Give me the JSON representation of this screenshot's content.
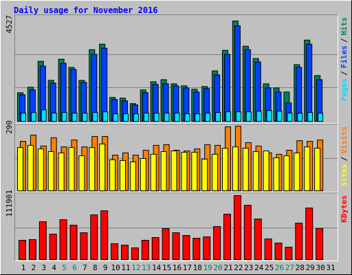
{
  "title": "Daily usage for November 2016",
  "legend_separator": "/",
  "chart_data": [
    {
      "type": "bar",
      "ylim": [
        0,
        4527
      ],
      "yticks": [
        4527
      ],
      "series": [
        {
          "name": "Hits",
          "color": "#00805c",
          "values": [
            1293,
            1540,
            2710,
            1848,
            2803,
            2433,
            1848,
            3234,
            3480,
            1078,
            1047,
            801,
            1417,
            1786,
            1879,
            1694,
            1602,
            1448,
            1571,
            2279,
            3203,
            4527,
            3388,
            2834,
            1694,
            1509,
            1324,
            2556,
            3665,
            2064,
            null
          ]
        },
        {
          "name": "Files",
          "color": "#0040ff",
          "values": [
            1200,
            1420,
            2495,
            1725,
            2620,
            2340,
            1755,
            3020,
            3295,
            985,
            925,
            740,
            1295,
            1665,
            1695,
            1600,
            1510,
            1325,
            1480,
            2095,
            3020,
            4310,
            3235,
            2680,
            1510,
            1325,
            832,
            2435,
            3480,
            1880,
            null
          ]
        },
        {
          "name": "Pages",
          "color": "#00e0ff",
          "values": [
            370,
            400,
            520,
            370,
            400,
            370,
            370,
            400,
            430,
            340,
            340,
            340,
            370,
            370,
            370,
            370,
            340,
            340,
            370,
            400,
            430,
            430,
            430,
            460,
            490,
            460,
            370,
            370,
            400,
            370,
            null
          ]
        }
      ]
    },
    {
      "type": "bar",
      "ylim": [
        0,
        290
      ],
      "yticks": [
        290
      ],
      "series": [
        {
          "name": "Visits",
          "color": "#ff8000",
          "values": [
            222,
            250,
            201,
            238,
            197,
            228,
            197,
            244,
            244,
            160,
            170,
            160,
            182,
            204,
            207,
            182,
            179,
            188,
            207,
            204,
            287,
            290,
            216,
            201,
            170,
            164,
            182,
            225,
            222,
            228,
            null
          ]
        },
        {
          "name": "Sites",
          "color": "#ffff00",
          "values": [
            194,
            204,
            188,
            176,
            170,
            194,
            157,
            194,
            210,
            139,
            136,
            130,
            145,
            164,
            176,
            179,
            173,
            173,
            142,
            164,
            191,
            197,
            191,
            176,
            179,
            148,
            157,
            170,
            197,
            191,
            null
          ]
        }
      ]
    },
    {
      "type": "bar",
      "ylim": [
        0,
        111901
      ],
      "yticks": [
        111901
      ],
      "series": [
        {
          "name": "KBytes",
          "color": "#ff0000",
          "values": [
            33690,
            34890,
            66170,
            44510,
            69780,
            60150,
            46920,
            78200,
            85420,
            27670,
            25260,
            20450,
            33680,
            38500,
            54140,
            46920,
            42110,
            37290,
            39700,
            57740,
            79400,
            111901,
            95040,
            70980,
            36090,
            28870,
            21650,
            63760,
            90230,
            54140,
            null
          ]
        }
      ],
      "categories": [
        "1",
        "2",
        "3",
        "4",
        "5",
        "6",
        "7",
        "8",
        "9",
        "10",
        "11",
        "12",
        "13",
        "14",
        "15",
        "16",
        "17",
        "18",
        "19",
        "20",
        "21",
        "22",
        "23",
        "24",
        "25",
        "26",
        "27",
        "28",
        "29",
        "30",
        "31"
      ],
      "category_colors": [
        "#000000",
        "#000000",
        "#000000",
        "#000000",
        "#00805c",
        "#00805c",
        "#000000",
        "#000000",
        "#000000",
        "#000000",
        "#000000",
        "#00805c",
        "#00805c",
        "#000000",
        "#000000",
        "#000000",
        "#000000",
        "#000000",
        "#00805c",
        "#00805c",
        "#000000",
        "#000000",
        "#000000",
        "#000000",
        "#000000",
        "#00805c",
        "#00805c",
        "#000000",
        "#000000",
        "#000000",
        "#000000"
      ]
    }
  ]
}
